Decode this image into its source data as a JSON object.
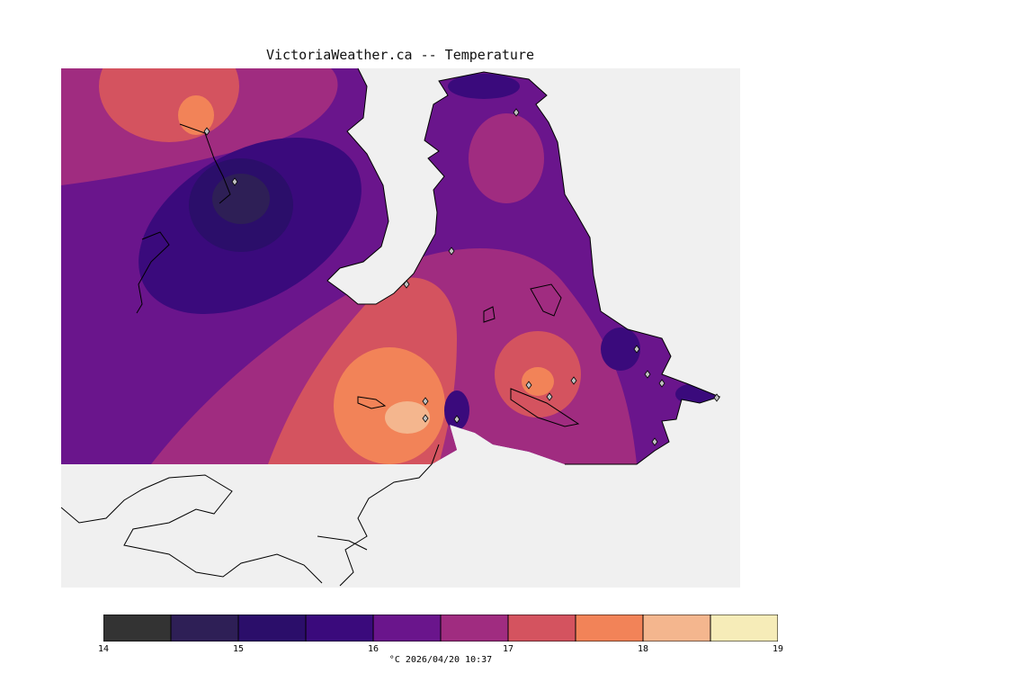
{
  "title": "VictoriaWeather.ca -- Temperature",
  "footer": {
    "unit": "°C",
    "timestamp": "2026/04/20 10:37"
  },
  "colorbar": {
    "tick_labels": [
      "14",
      "15",
      "16",
      "17",
      "18",
      "19"
    ],
    "bins": [
      {
        "from": 14.0,
        "to": 14.5,
        "color": "#333333"
      },
      {
        "from": 14.5,
        "to": 15.0,
        "color": "#2e1f56"
      },
      {
        "from": 15.0,
        "to": 15.5,
        "color": "#2b0e6a"
      },
      {
        "from": 15.5,
        "to": 16.0,
        "color": "#3a0a7c"
      },
      {
        "from": 16.0,
        "to": 16.5,
        "color": "#6a158c"
      },
      {
        "from": 16.5,
        "to": 17.0,
        "color": "#a02c80"
      },
      {
        "from": 17.0,
        "to": 17.5,
        "color": "#d4535f"
      },
      {
        "from": 17.5,
        "to": 18.0,
        "color": "#f28358"
      },
      {
        "from": 18.0,
        "to": 18.5,
        "color": "#f4b68e"
      },
      {
        "from": 18.5,
        "to": 19.0,
        "color": "#f6ecb8"
      }
    ]
  },
  "colors": {
    "background": "#f0f0f0",
    "land_outline": "#000000",
    "station_marker": "#c0c0c0"
  }
}
